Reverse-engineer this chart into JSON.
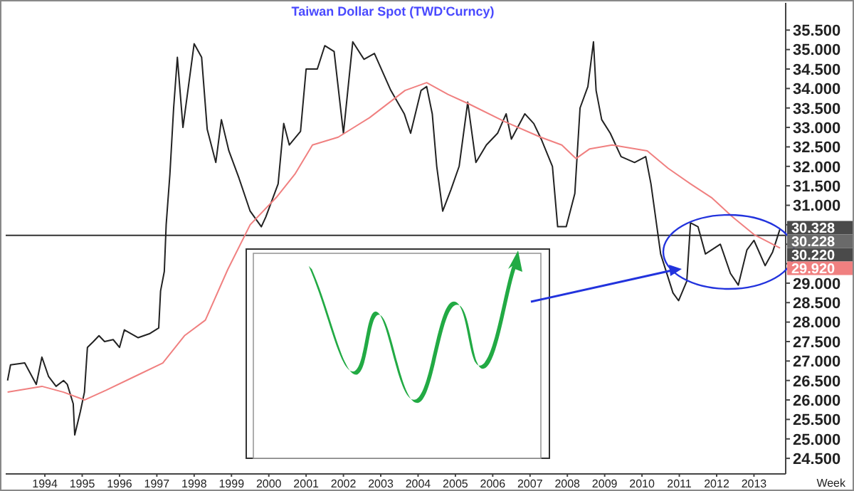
{
  "chart_data": {
    "type": "line",
    "title": "Taiwan Dollar Spot (TWD'Curncy)",
    "series": [
      {
        "name": null,
        "color": "#222222",
        "x": [
          1993.5,
          1993.58,
          1993.96,
          1994.1,
          1994.27,
          1994.42,
          1994.6,
          1994.8,
          1995.0,
          1995.1,
          1995.26,
          1995.3,
          1995.45,
          1995.56,
          1995.64,
          1995.8,
          1995.95,
          1996.1,
          1996.33,
          1996.5,
          1996.63,
          1997.0,
          1997.3,
          1997.55,
          1997.6,
          1997.7,
          1997.75,
          1997.85,
          1997.95,
          1998.05,
          1998.2,
          1998.5,
          1998.7,
          1998.85,
          1999.08,
          1999.23,
          1999.43,
          1999.7,
          2000.0,
          2000.3,
          2000.42,
          2000.75,
          2000.9,
          2001.05,
          2001.35,
          2001.5,
          2001.8,
          2002.0,
          2002.25,
          2002.5,
          2002.75,
          2003.05,
          2003.33,
          2003.77,
          2004.13,
          2004.3,
          2004.58,
          2004.73,
          2004.88,
          2005.0,
          2005.16,
          2005.38,
          2005.6,
          2005.83,
          2006.05,
          2006.33,
          2006.63,
          2006.86,
          2007.0,
          2007.36,
          2007.6,
          2007.8,
          2008.1,
          2008.24,
          2008.47,
          2008.7,
          2008.84,
          2009.05,
          2009.2,
          2009.27,
          2009.42,
          2009.65,
          2009.94,
          2010.3,
          2010.6,
          2010.74,
          2011.0,
          2011.33,
          2011.48,
          2011.7,
          2011.8,
          2012.0,
          2012.2,
          2012.6,
          2012.87,
          2013.08,
          2013.31,
          2013.5,
          2013.8,
          2014.0,
          2014.2
        ],
        "values": [
          26.5,
          26.9,
          26.95,
          26.7,
          26.4,
          27.1,
          26.6,
          26.35,
          26.5,
          26.4,
          25.9,
          25.1,
          25.7,
          26.2,
          27.35,
          27.5,
          27.65,
          27.5,
          27.55,
          27.35,
          27.8,
          27.6,
          27.7,
          27.85,
          28.8,
          29.3,
          30.5,
          31.8,
          33.5,
          34.8,
          33.0,
          35.15,
          34.8,
          32.95,
          32.1,
          33.2,
          32.4,
          31.7,
          30.85,
          30.45,
          30.7,
          31.55,
          33.1,
          32.55,
          32.9,
          34.5,
          34.5,
          35.1,
          34.95,
          32.85,
          35.2,
          34.75,
          34.9,
          33.95,
          33.35,
          32.85,
          33.95,
          34.05,
          33.35,
          32.0,
          30.85,
          31.4,
          32.0,
          33.65,
          32.1,
          32.55,
          32.85,
          33.35,
          32.7,
          33.35,
          33.1,
          32.7,
          32.0,
          30.45,
          30.45,
          31.3,
          33.5,
          34.05,
          35.2,
          33.95,
          33.2,
          32.85,
          32.25,
          32.1,
          32.25,
          31.55,
          29.75,
          28.75,
          28.55,
          29.05,
          30.55,
          30.45,
          29.75,
          30.0,
          29.25,
          28.95,
          29.85,
          30.1,
          29.45,
          29.8,
          30.4
        ]
      },
      {
        "name": null,
        "color": "#f08080",
        "x": [
          1993.5,
          1994.42,
          1995.0,
          1995.56,
          1996.14,
          1996.9,
          1997.66,
          1998.24,
          1998.8,
          1999.4,
          2000.0,
          2000.7,
          2001.2,
          2001.67,
          2002.36,
          2003.2,
          2004.15,
          2004.73,
          2005.3,
          2005.87,
          2006.82,
          2007.78,
          2008.35,
          2008.73,
          2009.1,
          2009.7,
          2010.64,
          2011.2,
          2011.8,
          2012.36,
          2012.93,
          2013.5,
          2014.2
        ],
        "values": [
          26.2,
          26.35,
          26.2,
          26.0,
          26.25,
          26.6,
          26.95,
          27.65,
          28.05,
          29.35,
          30.5,
          31.2,
          31.8,
          32.55,
          32.75,
          33.25,
          33.95,
          34.15,
          33.85,
          33.6,
          33.15,
          32.75,
          32.55,
          32.2,
          32.45,
          32.55,
          32.4,
          31.95,
          31.55,
          31.2,
          30.7,
          30.25,
          29.9
        ]
      }
    ],
    "xlim": [
      1993.45,
      2014.35
    ],
    "xticks": [
      {
        "value": 1994.5,
        "label": "1994"
      },
      {
        "value": 1995.5,
        "label": "1995"
      },
      {
        "value": 1996.5,
        "label": "1996"
      },
      {
        "value": 1997.5,
        "label": "1997"
      },
      {
        "value": 1998.5,
        "label": "1998"
      },
      {
        "value": 1999.5,
        "label": "1999"
      },
      {
        "value": 2000.5,
        "label": "2000"
      },
      {
        "value": 2001.5,
        "label": "2001"
      },
      {
        "value": 2002.5,
        "label": "2002"
      },
      {
        "value": 2003.5,
        "label": "2003"
      },
      {
        "value": 2004.5,
        "label": "2004"
      },
      {
        "value": 2005.5,
        "label": "2005"
      },
      {
        "value": 2006.5,
        "label": "2006"
      },
      {
        "value": 2007.5,
        "label": "2007"
      },
      {
        "value": 2008.5,
        "label": "2008"
      },
      {
        "value": 2009.5,
        "label": "2009"
      },
      {
        "value": 2010.5,
        "label": "2010"
      },
      {
        "value": 2011.5,
        "label": "2011"
      },
      {
        "value": 2012.5,
        "label": "2012"
      },
      {
        "value": 2013.5,
        "label": "2013"
      }
    ],
    "ylim": [
      24.1,
      36.2
    ],
    "yticks": [
      {
        "value": 24.5,
        "label": "24.500"
      },
      {
        "value": 25,
        "label": "25.000"
      },
      {
        "value": 25.5,
        "label": "25.500"
      },
      {
        "value": 26,
        "label": "26.000"
      },
      {
        "value": 26.5,
        "label": "26.500"
      },
      {
        "value": 27,
        "label": "27.000"
      },
      {
        "value": 27.5,
        "label": "27.500"
      },
      {
        "value": 28,
        "label": "28.000"
      },
      {
        "value": 28.5,
        "label": "28.500"
      },
      {
        "value": 29,
        "label": "29.000"
      },
      {
        "value": 29.5,
        "label": null
      },
      {
        "value": 30,
        "label": null
      },
      {
        "value": 30.5,
        "label": null
      },
      {
        "value": 31,
        "label": "31.000"
      },
      {
        "value": 31.5,
        "label": "31.500"
      },
      {
        "value": 32,
        "label": "32.000"
      },
      {
        "value": 32.5,
        "label": "32.500"
      },
      {
        "value": 33,
        "label": "33.000"
      },
      {
        "value": 33.5,
        "label": "33.500"
      },
      {
        "value": 34,
        "label": "34.000"
      },
      {
        "value": 34.5,
        "label": "34.500"
      },
      {
        "value": 35,
        "label": "35.000"
      },
      {
        "value": 35.5,
        "label": "35.500"
      }
    ],
    "ref_lines": [
      {
        "axis": "y",
        "value": 30.228,
        "color": "#333333"
      }
    ],
    "xlabel": "Week",
    "annotations": [
      "30.328",
      "30.228",
      "30.220",
      "29.920"
    ],
    "grid": false,
    "marker": "none",
    "line_style": "solid"
  }
}
